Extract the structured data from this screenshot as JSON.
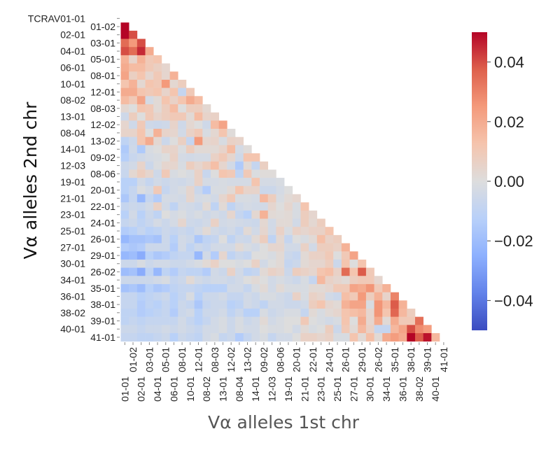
{
  "chart_data": {
    "type": "heatmap",
    "title": "",
    "xlabel": "Vα alleles 1st chr",
    "ylabel": "Vα alleles 2nd chr",
    "x_labels": [
      "01-01",
      "01-02",
      "02-01",
      "03-01",
      "04-01",
      "05-01",
      "06-01",
      "08-01",
      "10-01",
      "12-01",
      "08-02",
      "08-03",
      "13-01",
      "12-02",
      "08-04",
      "13-02",
      "14-01",
      "09-02",
      "12-03",
      "08-06",
      "19-01",
      "20-01",
      "21-01",
      "22-01",
      "23-01",
      "24-01",
      "25-01",
      "26-01",
      "27-01",
      "29-01",
      "30-01",
      "26-02",
      "34-01",
      "35-01",
      "36-01",
      "38-01",
      "38-02",
      "39-01",
      "40-01",
      "41-01"
    ],
    "y_labels": [
      "TCRAV01-01",
      "01-02",
      "02-01",
      "03-01",
      "04-01",
      "05-01",
      "06-01",
      "08-01",
      "10-01",
      "12-01",
      "08-02",
      "08-03",
      "13-01",
      "12-02",
      "08-04",
      "13-02",
      "14-01",
      "09-02",
      "12-03",
      "08-06",
      "19-01",
      "20-01",
      "21-01",
      "22-01",
      "23-01",
      "24-01",
      "25-01",
      "26-01",
      "27-01",
      "29-01",
      "30-01",
      "26-02",
      "34-01",
      "35-01",
      "36-01",
      "38-01",
      "38-02",
      "39-01",
      "40-01",
      "41-01"
    ],
    "mask": "upper triangle incl. diagonal",
    "colormap": "coolwarm",
    "vmin": -0.05,
    "vmax": 0.05,
    "colorbar_ticks": [
      0.04,
      0.02,
      0.0,
      -0.02,
      -0.04
    ],
    "colorbar_tick_labels": [
      "0.04",
      "0.02",
      "0.00",
      "−0.02",
      "−0.04"
    ],
    "colorbar_position": "right",
    "values": [
      [],
      [
        0.05
      ],
      [
        0.05,
        0.04
      ],
      [
        0.035,
        0.025,
        0.04
      ],
      [
        0.04,
        0.035,
        0.045,
        0.02
      ],
      [
        0.018,
        0.005,
        0.018,
        0.01,
        0.012
      ],
      [
        0.02,
        0.015,
        0.015,
        0.01,
        0.007,
        0.004
      ],
      [
        0.022,
        0.007,
        0.012,
        0.004,
        0.01,
        0.004,
        0.018
      ],
      [
        0.012,
        0.018,
        0.003,
        0.012,
        0.01,
        0.025,
        0.003,
        0.008
      ],
      [
        0.02,
        0.02,
        0.012,
        0.01,
        0.012,
        0.005,
        0.012,
        -0.008,
        0.01
      ],
      [
        0.015,
        0.01,
        0.022,
        -0.003,
        0.002,
        0.012,
        0.006,
        0.012,
        0.02,
        0.015
      ],
      [
        0.003,
        0,
        0.012,
        0.01,
        0.002,
        0.008,
        0.015,
        0,
        0.008,
        0.008,
        0.003
      ],
      [
        -0.005,
        0.008,
        0,
        0.01,
        0.005,
        0.008,
        0.01,
        0.01,
        0.002,
        0.015,
        0.005,
        0.006
      ],
      [
        0.004,
        -0.005,
        0.01,
        -0.005,
        -0.006,
        -0.005,
        0.005,
        -0.005,
        0.003,
        0,
        -0.005,
        0.015,
        0.022
      ],
      [
        0.005,
        0.005,
        0.012,
        0,
        0.018,
        0.005,
        0.004,
        -0.004,
        0.006,
        0.01,
        -0.002,
        0.003,
        0.012,
        0.001
      ],
      [
        -0.01,
        -0.006,
        0.012,
        0.02,
        0.003,
        -0.006,
        0,
        0.007,
        -0.008,
        0.025,
        0.004,
        0.005,
        -0.002,
        0.006,
        0.005
      ],
      [
        -0.015,
        -0.005,
        -0.015,
        -0.002,
        0,
        0.005,
        0.005,
        -0.001,
        0.008,
        0.002,
        0.002,
        0.002,
        0.005,
        0.015,
        -0.003,
        0.001
      ],
      [
        -0.013,
        -0.007,
        -0.005,
        -0.003,
        -0.002,
        0,
        0.006,
        -0.003,
        -0.004,
        -0.003,
        -0.003,
        0.006,
        0.01,
        0.004,
        -0.005,
        0.012,
        0.012
      ],
      [
        -0.006,
        -0.004,
        0.005,
        -0.006,
        -0.001,
        0.004,
        0.004,
        -0.002,
        0.008,
        0.004,
        0.008,
        0.014,
        0.004,
        -0.004,
        -0.015,
        0.002,
        -0.008,
        0.007
      ],
      [
        -0.007,
        0.003,
        0.008,
        0.004,
        -0.005,
        0.01,
        -0.002,
        0,
        -0.002,
        0.006,
        -0.007,
        0,
        0.012,
        0.01,
        -0.01,
        0.01,
        -0.001,
        0.001,
        0.001
      ],
      [
        -0.012,
        -0.012,
        -0.004,
        -0.008,
        -0.004,
        -0.006,
        -0.004,
        -0.005,
        -0.003,
        0.006,
        -0.003,
        -0.003,
        -0.002,
        -0.003,
        -0.003,
        -0.003,
        0.012,
        -0.003,
        -0.003,
        -0.002
      ],
      [
        -0.012,
        -0.008,
        -0.001,
        -0.004,
        0.01,
        -0.008,
        -0.004,
        -0.002,
        0.004,
        -0.006,
        -0.014,
        -0.002,
        -0.002,
        0.002,
        0.012,
        0.005,
        0.005,
        -0.006,
        -0.006,
        -0.003,
        0
      ],
      [
        -0.016,
        -0.008,
        -0.022,
        -0.008,
        -0.014,
        -0.003,
        -0.003,
        -0.004,
        0.004,
        -0.003,
        -0.002,
        -0.004,
        0.004,
        0.01,
        -0.002,
        -0.002,
        -0.003,
        0.016,
        0.008,
        -0.002,
        0.002,
        0.004
      ],
      [
        -0.008,
        -0.006,
        -0.007,
        -0.004,
        0.006,
        -0.004,
        -0.01,
        -0.003,
        -0.004,
        -0.006,
        0.002,
        -0.01,
        0.002,
        -0.01,
        -0.005,
        -0.003,
        -0.004,
        -0.004,
        0.004,
        0,
        0.004,
        -0.002,
        0.012
      ],
      [
        -0.012,
        -0.004,
        -0.012,
        -0.006,
        -0.01,
        0,
        -0.003,
        -0.001,
        -0.004,
        -0.002,
        -0.005,
        -0.003,
        -0.005,
        0.004,
        -0.008,
        -0.012,
        0.003,
        0.018,
        0.002,
        0.001,
        0.002,
        -0.002,
        0.008,
        0.004
      ],
      [
        -0.008,
        -0.006,
        -0.01,
        -0.007,
        -0.003,
        -0.006,
        -0.003,
        0.004,
        -0.005,
        -0.006,
        -0.004,
        0.006,
        -0.004,
        -0.003,
        -0.004,
        -0.005,
        -0.006,
        0.003,
        -0.004,
        0.002,
        0.002,
        -0.004,
        0.008,
        0.003,
        0.008
      ],
      [
        -0.014,
        -0.012,
        -0.008,
        -0.012,
        -0.01,
        -0.006,
        -0.008,
        -0.006,
        -0.008,
        -0.004,
        0.002,
        -0.004,
        -0.006,
        -0.004,
        -0.008,
        0.002,
        -0.004,
        0.004,
        -0.004,
        0.006,
        -0.002,
        0.006,
        0.004,
        0.006,
        0.006,
        0.012
      ],
      [
        -0.022,
        -0.018,
        -0.018,
        -0.016,
        -0.018,
        -0.006,
        -0.012,
        -0.004,
        -0.006,
        -0.016,
        -0.01,
        -0.008,
        0,
        -0.01,
        -0.005,
        -0.006,
        0.002,
        0.008,
        -0.01,
        0.003,
        -0.008,
        0,
        -0.002,
        0.002,
        0.014,
        0.006,
        0.008
      ],
      [
        -0.014,
        -0.016,
        -0.014,
        -0.006,
        -0.006,
        -0.006,
        -0.014,
        -0.004,
        -0.01,
        -0.006,
        -0.008,
        -0.004,
        -0.004,
        -0.004,
        0.002,
        -0.002,
        -0.004,
        0,
        0.004,
        0.004,
        -0.004,
        -0.004,
        0.006,
        -0.004,
        0.008,
        0.008,
        0.006,
        0.018
      ],
      [
        -0.022,
        -0.02,
        -0.026,
        -0.012,
        -0.016,
        -0.014,
        -0.01,
        -0.008,
        -0.008,
        -0.022,
        -0.004,
        -0.014,
        0.004,
        -0.01,
        -0.006,
        -0.008,
        0,
        0,
        -0.002,
        0.002,
        -0.006,
        -0.008,
        0.002,
        0.006,
        0.006,
        0.01,
        0,
        0.01,
        0.022
      ],
      [
        -0.006,
        -0.006,
        -0.002,
        -0.006,
        -0.004,
        -0.004,
        -0.006,
        -0.006,
        -0.004,
        -0.002,
        0.002,
        0.006,
        0,
        0,
        -0.002,
        0,
        0.006,
        -0.004,
        0,
        0.002,
        -0.008,
        -0.006,
        0.002,
        0.004,
        0.004,
        0.008,
        -0.006,
        0.012,
        0,
        0.012
      ],
      [
        -0.02,
        -0.018,
        -0.026,
        -0.01,
        -0.022,
        -0.01,
        -0.014,
        -0.008,
        -0.01,
        -0.01,
        -0.014,
        -0.004,
        -0.006,
        0.006,
        -0.004,
        -0.01,
        -0.008,
        0.002,
        0.006,
        0.004,
        -0.006,
        0.008,
        0.006,
        0.004,
        0.012,
        0.014,
        0.006,
        0.035,
        0.012,
        0.038,
        0.01
      ],
      [
        -0.006,
        -0.006,
        -0.006,
        -0.006,
        -0.004,
        -0.002,
        -0.008,
        -0.006,
        0.002,
        -0.004,
        -0.006,
        -0.004,
        -0.004,
        -0.006,
        -0.004,
        0,
        0.002,
        0,
        -0.004,
        -0.002,
        -0.004,
        -0.006,
        -0.002,
        -0.008,
        0.016,
        0.006,
        0.004,
        0.002,
        0.008,
        0.01,
        0.01,
        0.004
      ],
      [
        -0.018,
        -0.016,
        -0.02,
        -0.012,
        -0.016,
        -0.014,
        -0.01,
        -0.008,
        -0.008,
        -0.01,
        -0.012,
        -0.012,
        -0.012,
        -0.004,
        -0.004,
        -0.008,
        -0.002,
        0.002,
        -0.004,
        0.002,
        -0.002,
        -0.002,
        -0.002,
        0.002,
        0.002,
        0.004,
        0.01,
        0.01,
        0.022,
        0.02,
        0.026,
        0.01,
        0.018
      ],
      [
        -0.008,
        -0.008,
        -0.012,
        -0.01,
        -0.008,
        -0.006,
        -0.012,
        -0.008,
        -0.002,
        -0.012,
        -0.006,
        -0.006,
        -0.004,
        -0.008,
        -0.008,
        -0.004,
        -0.006,
        -0.002,
        -0.002,
        -0.004,
        -0.006,
        0.006,
        -0.002,
        0.006,
        0.004,
        -0.004,
        -0.006,
        0.014,
        0.01,
        0.025,
        0.008,
        0.018,
        0.005,
        0.03
      ],
      [
        -0.008,
        -0.008,
        -0.014,
        -0.01,
        -0.012,
        -0.008,
        -0.012,
        -0.006,
        -0.008,
        -0.016,
        -0.008,
        -0.006,
        -0.006,
        -0.012,
        -0.01,
        -0.004,
        -0.006,
        -0.01,
        -0.004,
        -0.004,
        -0.006,
        -0.006,
        -0.004,
        0.008,
        0.012,
        0.004,
        0.002,
        0.018,
        0.022,
        0.022,
        -0.002,
        0.026,
        0.016,
        0.038,
        0.018
      ],
      [
        -0.01,
        -0.01,
        -0.014,
        -0.012,
        -0.01,
        -0.008,
        -0.014,
        -0.006,
        -0.004,
        -0.012,
        -0.006,
        -0.006,
        -0.004,
        -0.01,
        -0.006,
        -0.012,
        -0.012,
        -0.002,
        -0.006,
        -0.004,
        -0.002,
        -0.002,
        -0.008,
        0.002,
        -0.002,
        0.002,
        0.004,
        0.012,
        0.014,
        0.016,
        0.004,
        0.026,
        0.012,
        0.036,
        0.016,
        0.008
      ],
      [
        -0.01,
        -0.008,
        -0.01,
        -0.008,
        -0.008,
        -0.008,
        -0.008,
        -0.004,
        -0.008,
        -0.012,
        -0.008,
        -0.004,
        -0.002,
        -0.006,
        -0.002,
        -0.006,
        -0.004,
        0.002,
        -0.004,
        -0.002,
        0,
        0,
        0.01,
        0,
        -0.002,
        -0.004,
        -0.002,
        0.012,
        0,
        0.02,
        0.004,
        0.02,
        0.002,
        0.02,
        0.01,
        0.01,
        0.034
      ],
      [
        -0.006,
        -0.006,
        -0.008,
        -0.006,
        -0.006,
        -0.004,
        -0.006,
        -0.004,
        -0.006,
        -0.008,
        -0.004,
        -0.004,
        -0.002,
        -0.006,
        -0.002,
        -0.004,
        -0.004,
        0,
        -0.002,
        -0.002,
        0,
        -0.004,
        0.002,
        -0.002,
        0,
        0.008,
        -0.006,
        0.01,
        0.002,
        0.016,
        0.006,
        -0.008,
        -0.008,
        0.016,
        0.022,
        0.04,
        0.028,
        0.024
      ],
      [
        -0.008,
        -0.008,
        -0.01,
        -0.01,
        -0.008,
        -0.006,
        -0.012,
        -0.006,
        -0.008,
        -0.01,
        -0.004,
        -0.002,
        -0.008,
        -0.006,
        -0.014,
        -0.008,
        -0.004,
        -0.002,
        -0.008,
        -0.004,
        -0.004,
        0,
        0.006,
        0.006,
        0.004,
        0.006,
        -0.002,
        -0.002,
        0.012,
        0.002,
        0.014,
        0.002,
        0.02,
        0.024,
        0.02,
        0.05,
        0.038,
        0.048,
        0.016
      ]
    ]
  }
}
